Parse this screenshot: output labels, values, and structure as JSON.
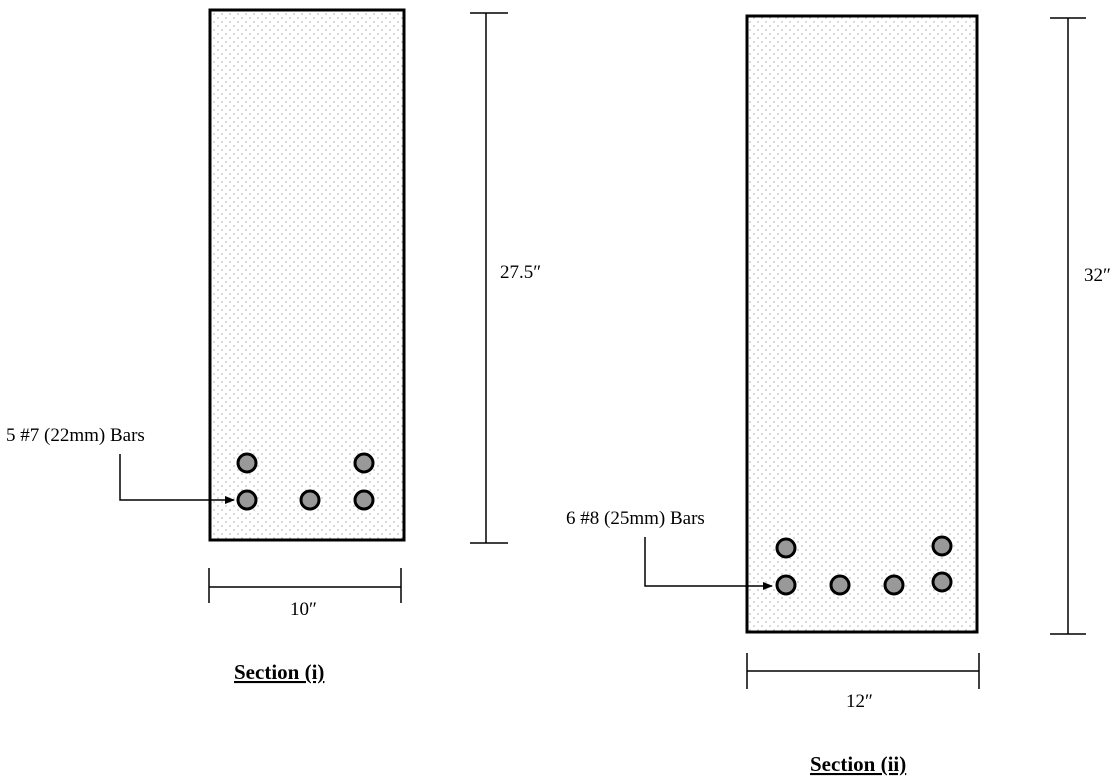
{
  "colors": {
    "concrete_dots": "#bfbfbf",
    "bar_fill": "#999999",
    "outline": "#000000"
  },
  "sections": [
    {
      "title": "Section (i)",
      "depth_label": "27.5″",
      "width_label": "10″",
      "bars_label": "5 #7 (22mm) Bars",
      "bar_count": 5
    },
    {
      "title": "Section (ii)",
      "depth_label": "32″",
      "width_label": "12″",
      "bars_label": "6 #8 (25mm) Bars",
      "bar_count": 6
    }
  ]
}
